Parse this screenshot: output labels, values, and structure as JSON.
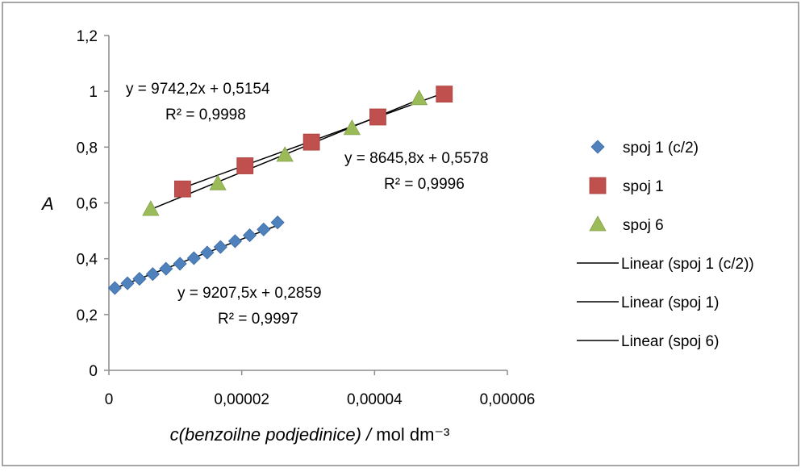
{
  "chart_data": {
    "type": "scatter",
    "title": "",
    "xlabel_italic": "c(benzoilne podjedinice) /",
    "xlabel_unit": " mol dm⁻³",
    "ylabel": "A",
    "xlim": [
      0,
      6e-05
    ],
    "ylim": [
      0,
      1.2
    ],
    "x_ticks": [
      "0",
      "0,00002",
      "0,00004",
      "0,00006"
    ],
    "y_ticks": [
      "0",
      "0,2",
      "0,4",
      "0,6",
      "0,8",
      "1",
      "1,2"
    ],
    "x_tick_values": [
      0,
      2e-05,
      4e-05,
      6e-05
    ],
    "y_tick_values": [
      0,
      0.2,
      0.4,
      0.6,
      0.8,
      1.0,
      1.2
    ],
    "grid": false,
    "legend_position": "right",
    "series": [
      {
        "name": "spoj 1 (c/2)",
        "marker": "diamond",
        "color": "#4F81BD",
        "x": [
          9e-07,
          2.8e-06,
          4.6e-06,
          6.6e-06,
          8.6e-06,
          1.07e-05,
          1.28e-05,
          1.48e-05,
          1.68e-05,
          1.9e-05,
          2.12e-05,
          2.33e-05,
          2.54e-05
        ],
        "y": [
          0.295,
          0.312,
          0.328,
          0.345,
          0.364,
          0.382,
          0.402,
          0.422,
          0.442,
          0.463,
          0.484,
          0.505,
          0.53
        ]
      },
      {
        "name": "spoj 1",
        "marker": "square",
        "color": "#C0504D",
        "x": [
          1.11e-05,
          2.05e-05,
          3.05e-05,
          4.05e-05,
          5.05e-05
        ],
        "y": [
          0.65,
          0.733,
          0.818,
          0.908,
          0.99
        ]
      },
      {
        "name": "spoj 6",
        "marker": "triangle",
        "color": "#9BBB59",
        "x": [
          6.3e-06,
          1.64e-05,
          2.65e-05,
          3.66e-05,
          4.67e-05
        ],
        "y": [
          0.578,
          0.67,
          0.772,
          0.868,
          0.975
        ]
      }
    ],
    "trendlines": [
      {
        "name": "Linear (spoj 1 (c/2))",
        "slope": 9207.5,
        "intercept": 0.2859,
        "x_range": [
          9e-07,
          2.54e-05
        ],
        "equation": "y = 9207,5x + 0,2859",
        "r2": "R² = 0,9997"
      },
      {
        "name": "Linear (spoj 1)",
        "slope": 8645.8,
        "intercept": 0.5578,
        "x_range": [
          1.11e-05,
          5.05e-05
        ],
        "equation": "y = 8645,8x + 0,5578",
        "r2": "R² = 0,9996"
      },
      {
        "name": "Linear (spoj 6)",
        "slope": 9742.2,
        "intercept": 0.5154,
        "x_range": [
          6.3e-06,
          4.67e-05
        ],
        "equation": "y = 9742,2x + 0,5154",
        "r2": "R² = 0,9998"
      }
    ]
  }
}
